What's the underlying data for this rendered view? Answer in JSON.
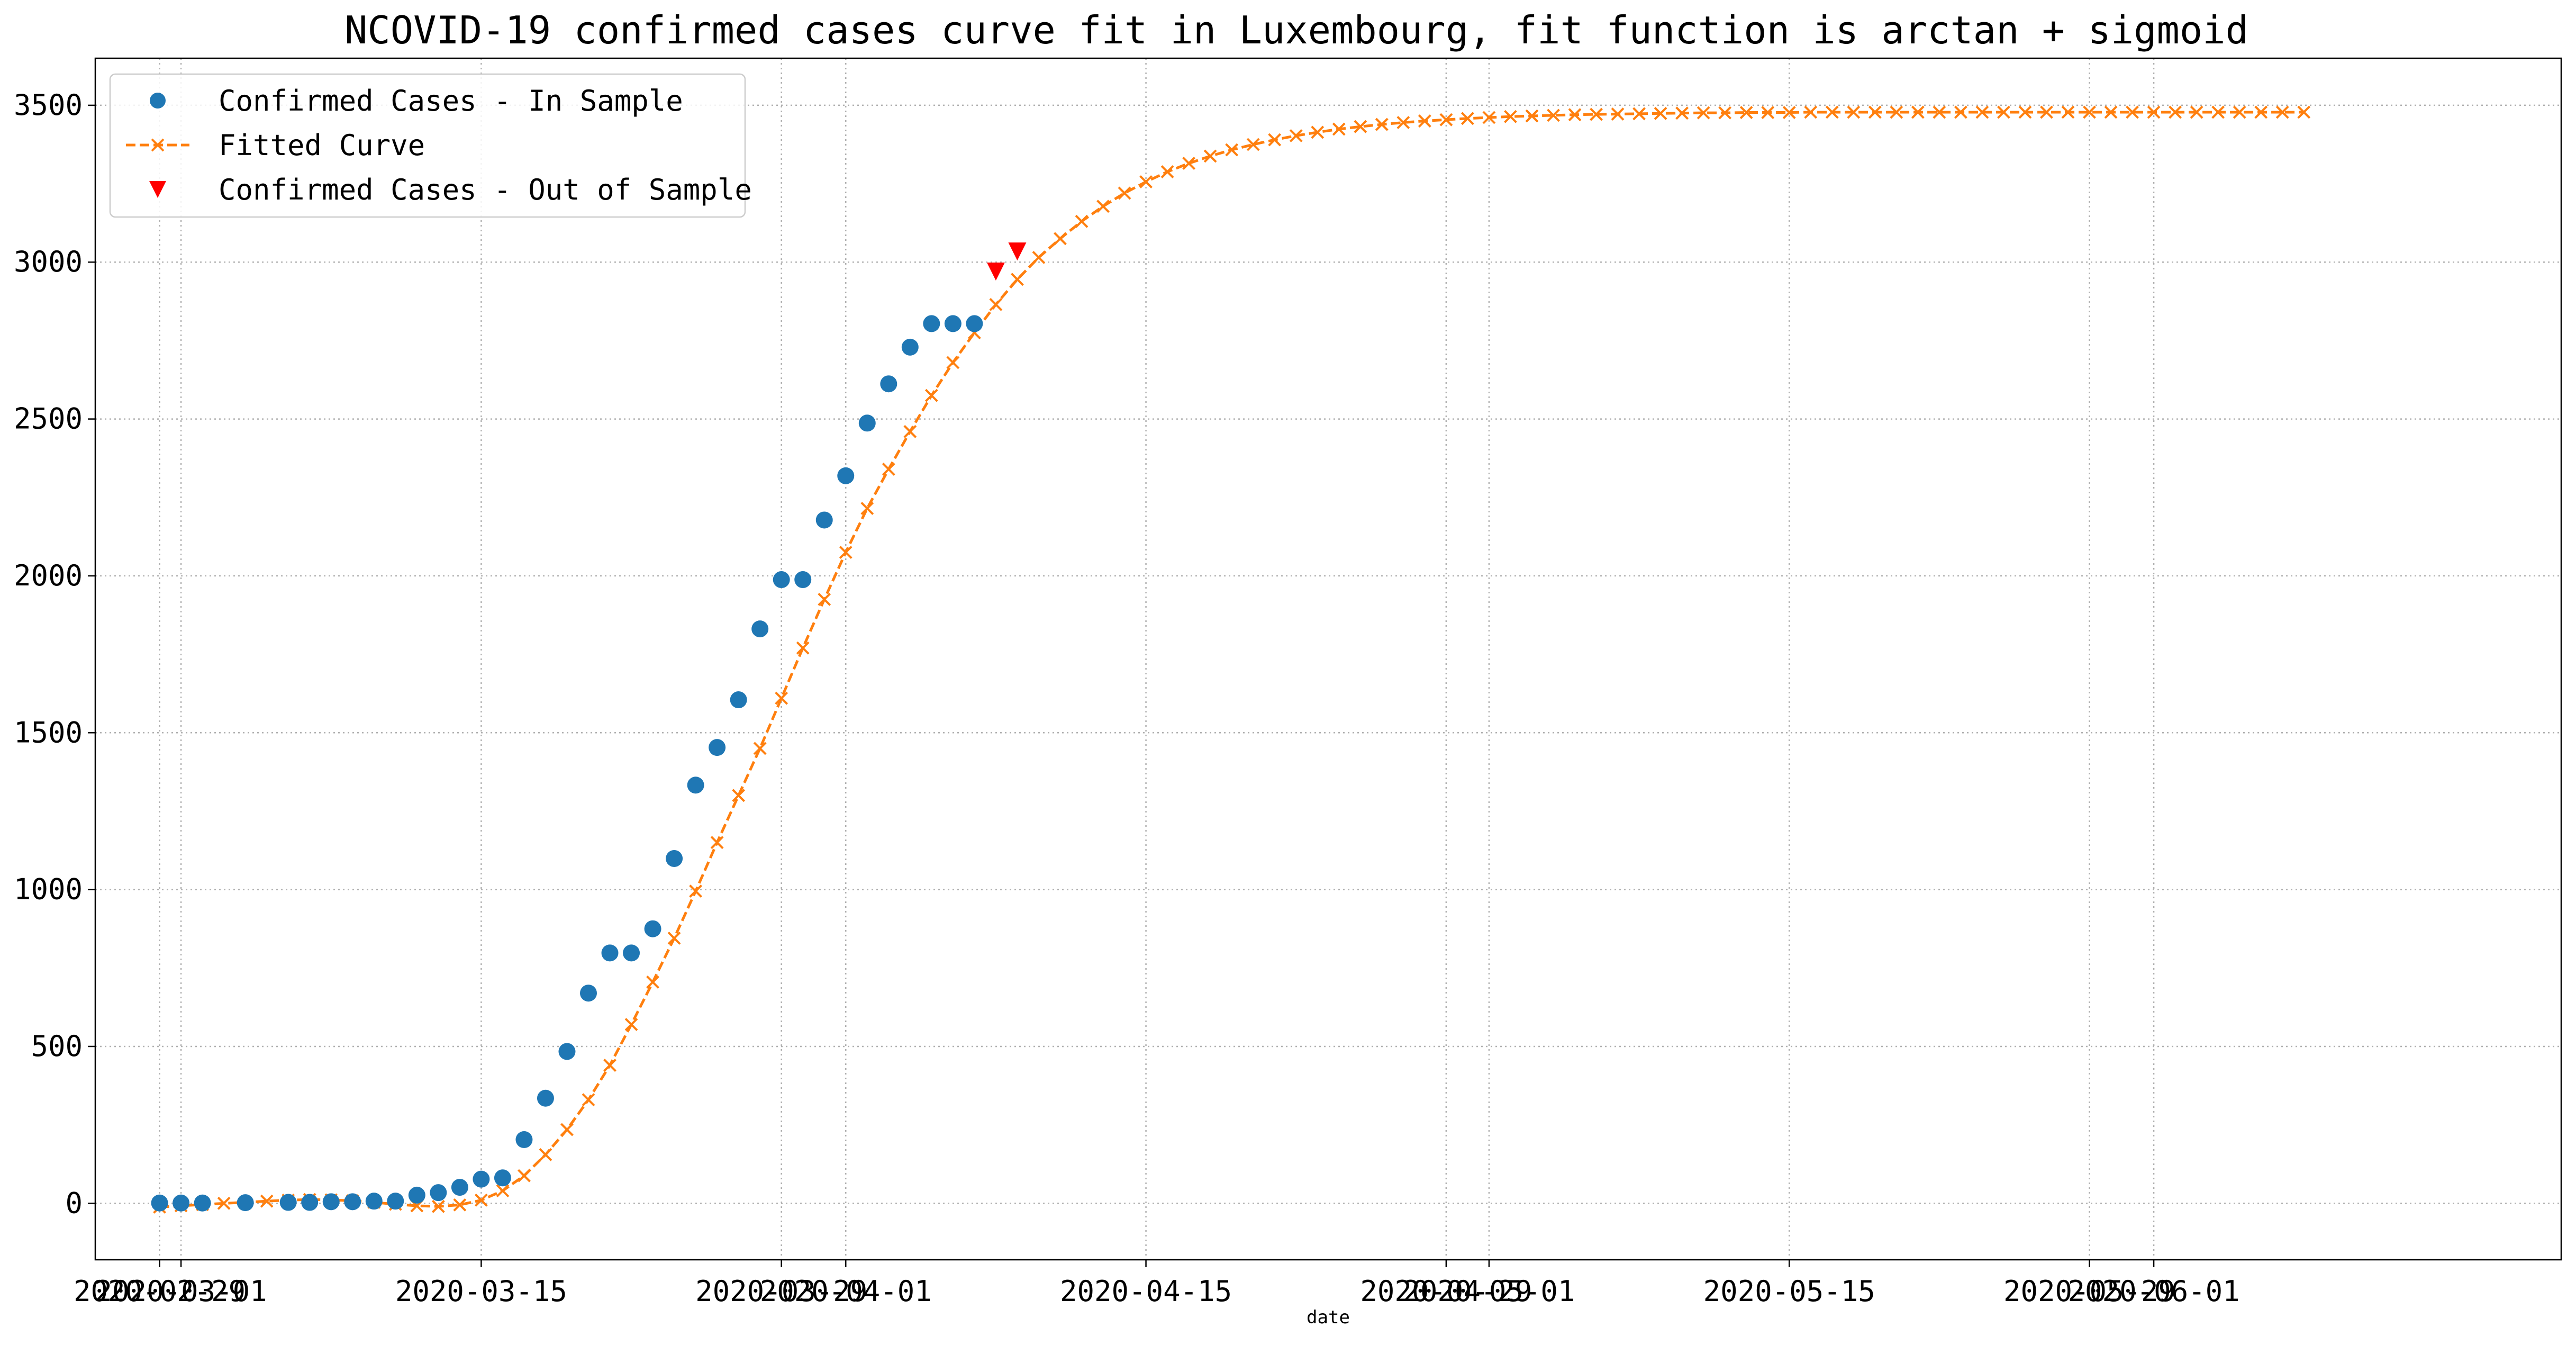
{
  "chart_data": {
    "type": "line",
    "title": "NCOVID-19 confirmed cases curve fit in Luxembourg, fit function is arctan + sigmoid",
    "xlabel": "date",
    "ylabel": "",
    "x_range": [
      "2020-02-26",
      "2020-06-20"
    ],
    "ylim": [
      -180,
      3650
    ],
    "grid": true,
    "legend_position": "top-left",
    "x_ticks": [
      "2020-02-29",
      "2020-03-01",
      "2020-03-15",
      "2020-03-29",
      "2020-04-01",
      "2020-04-15",
      "2020-04-29",
      "2020-05-01",
      "2020-05-15",
      "2020-05-29",
      "2020-06-01"
    ],
    "y_ticks": [
      0,
      500,
      1000,
      1500,
      2000,
      2500,
      3000,
      3500
    ],
    "colors": {
      "in_sample": "#1f77b4",
      "fitted": "#ff7f0e",
      "out_sample": "#ff0000",
      "grid": "#b0b0b0"
    },
    "series": [
      {
        "name": "Confirmed Cases - In Sample",
        "style": "circle",
        "x": [
          "2020-02-29",
          "2020-03-01",
          "2020-03-02",
          "2020-03-04",
          "2020-03-06",
          "2020-03-07",
          "2020-03-08",
          "2020-03-09",
          "2020-03-10",
          "2020-03-11",
          "2020-03-12",
          "2020-03-13",
          "2020-03-14",
          "2020-03-15",
          "2020-03-16",
          "2020-03-17",
          "2020-03-18",
          "2020-03-19",
          "2020-03-20",
          "2020-03-21",
          "2020-03-22",
          "2020-03-23",
          "2020-03-24",
          "2020-03-25",
          "2020-03-26",
          "2020-03-27",
          "2020-03-28",
          "2020-03-29",
          "2020-03-30",
          "2020-03-31",
          "2020-04-01",
          "2020-04-02",
          "2020-04-03",
          "2020-04-04",
          "2020-04-05",
          "2020-04-06",
          "2020-04-07"
        ],
        "y": [
          1,
          1,
          1,
          2,
          3,
          3,
          5,
          5,
          7,
          7,
          26,
          34,
          51,
          77,
          81,
          203,
          335,
          484,
          670,
          798,
          798,
          875,
          1099,
          1333,
          1453,
          1605,
          1831,
          1988,
          1988,
          2178,
          2319,
          2487,
          2612,
          2729,
          2804,
          2804,
          2804
        ]
      },
      {
        "name": "Fitted Curve",
        "style": "dashed-x",
        "x_start": "2020-02-29",
        "x_end": "2020-06-08",
        "description": "daily values from 2020-02-29 to 2020-06-08",
        "y": [
          -12,
          -8,
          -4,
          0,
          3,
          7,
          10,
          12,
          11,
          8,
          3,
          -3,
          -8,
          -10,
          -5,
          10,
          40,
          88,
          155,
          235,
          330,
          440,
          570,
          705,
          845,
          995,
          1150,
          1300,
          1450,
          1610,
          1770,
          1925,
          2075,
          2215,
          2340,
          2460,
          2575,
          2680,
          2775,
          2865,
          2945,
          3015,
          3075,
          3130,
          3178,
          3220,
          3256,
          3288,
          3315,
          3338,
          3358,
          3375,
          3390,
          3403,
          3414,
          3424,
          3432,
          3439,
          3445,
          3450,
          3454,
          3458,
          3461,
          3464,
          3466,
          3468,
          3470,
          3471,
          3472,
          3473,
          3474,
          3475,
          3476,
          3476,
          3477,
          3477,
          3477,
          3478,
          3478,
          3478,
          3478,
          3478,
          3478,
          3478,
          3478,
          3478,
          3478,
          3478,
          3478,
          3478,
          3478,
          3478,
          3478,
          3478,
          3478,
          3478,
          3478,
          3478,
          3478,
          3478,
          3478
        ]
      },
      {
        "name": "Confirmed Cases - Out of Sample",
        "style": "triangle-down",
        "x": [
          "2020-04-08",
          "2020-04-09"
        ],
        "y": [
          2970,
          3034
        ]
      }
    ]
  }
}
